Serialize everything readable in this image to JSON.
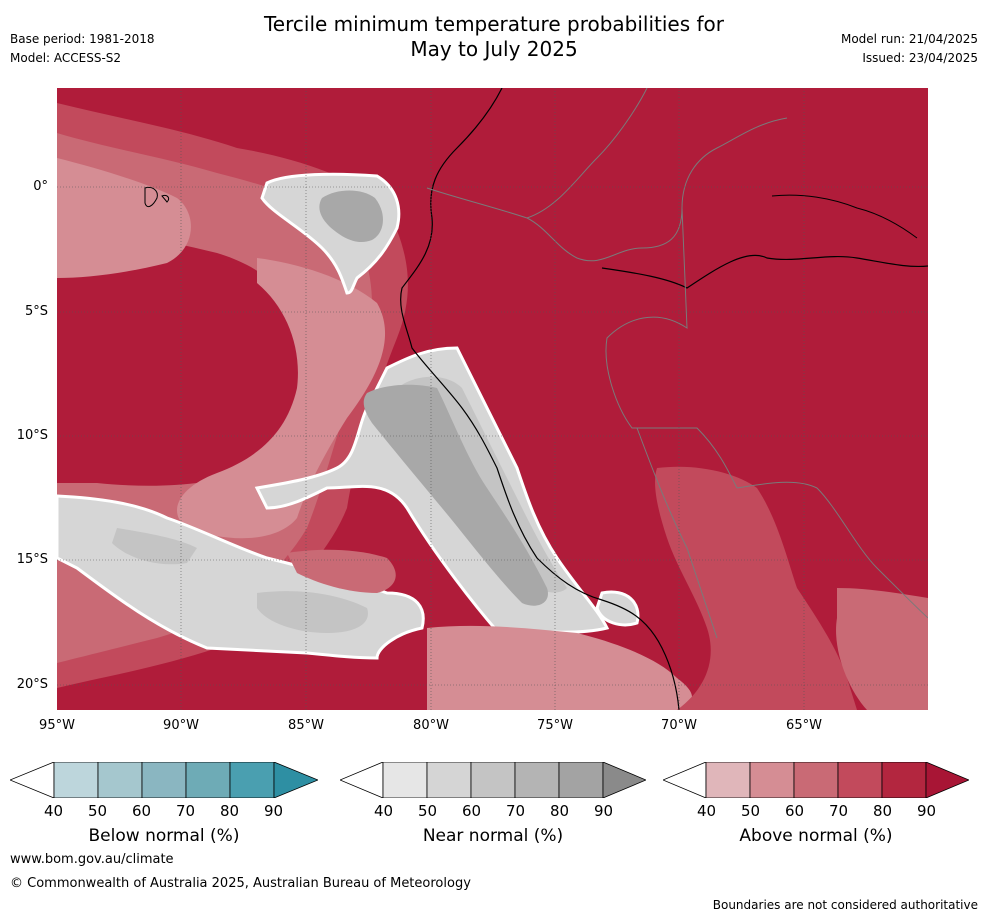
{
  "header": {
    "title_line1": "Tercile minimum temperature probabilities for",
    "title_line2": "May to July 2025",
    "base_period": "Base period: 1981-2018",
    "model": "Model: ACCESS-S2",
    "model_run": "Model run: 21/04/2025",
    "issued": "Issued: 23/04/2025"
  },
  "map": {
    "lat_ticks": [
      "0°",
      "5°S",
      "10°S",
      "15°S",
      "20°S"
    ],
    "lon_ticks": [
      "95°W",
      "90°W",
      "85°W",
      "80°W",
      "75°W",
      "70°W",
      "65°W"
    ],
    "colors": {
      "above_90": "#b01c3a",
      "above_80": "#c24a5c",
      "above_70": "#c96a75",
      "above_60": "#d58d94",
      "above_50": "#e0b6ba",
      "near_60": "#d6d6d6",
      "near_70": "#c4c4c4",
      "near_80": "#a8a8a8",
      "boundary": "#7a7a7a",
      "coast": "#000000"
    }
  },
  "colorbars": [
    {
      "label": "Below normal (%)",
      "ticks": [
        "40",
        "50",
        "60",
        "70",
        "80",
        "90"
      ],
      "colors": [
        "#ffffff",
        "#bdd6dc",
        "#a5c7ce",
        "#8ab6c1",
        "#6eabb6",
        "#4a9fb0",
        "#2e8fa3"
      ]
    },
    {
      "label": "Near normal (%)",
      "ticks": [
        "40",
        "50",
        "60",
        "70",
        "80",
        "90"
      ],
      "colors": [
        "#ffffff",
        "#e6e6e6",
        "#d5d5d5",
        "#c4c4c4",
        "#b4b4b4",
        "#a3a3a3",
        "#8a8a8a"
      ]
    },
    {
      "label": "Above normal (%)",
      "ticks": [
        "40",
        "50",
        "60",
        "70",
        "80",
        "90"
      ],
      "colors": [
        "#ffffff",
        "#e0b6ba",
        "#d58d94",
        "#c96a75",
        "#c24a5c",
        "#b3263f",
        "#a81535"
      ]
    }
  ],
  "footer": {
    "website": "www.bom.gov.au/climate",
    "copyright": "© Commonwealth of Australia 2025, Australian Bureau of Meteorology",
    "note": "Boundaries are not considered authoritative"
  }
}
